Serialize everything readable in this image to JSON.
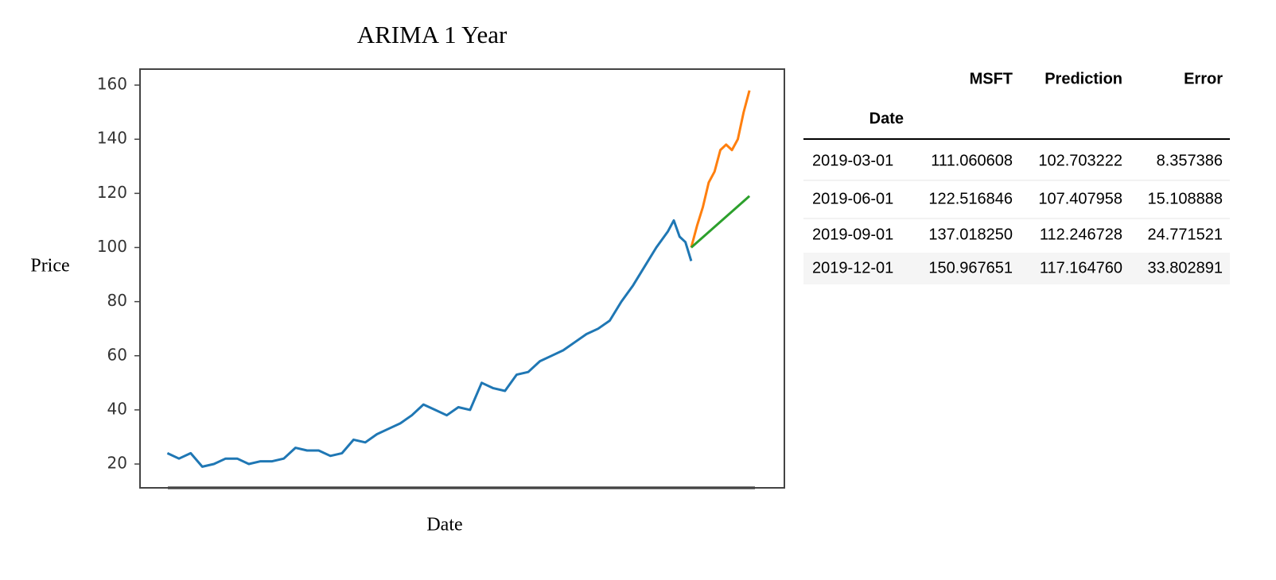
{
  "chart_data": {
    "type": "line",
    "title": "ARIMA 1 Year",
    "x_label": "Date",
    "y_label": "Price",
    "xlim": [
      -4.7,
      106
    ],
    "ylim": [
      11.2,
      165.9
    ],
    "yticks": [
      20,
      40,
      60,
      80,
      100,
      120,
      140,
      160
    ],
    "grid": false,
    "series": [
      {
        "color": "#1f77b4",
        "x": [
          0,
          2,
          4,
          6,
          8,
          10,
          12,
          14,
          16,
          18,
          20,
          22,
          24,
          26,
          28,
          30,
          32,
          34,
          36,
          38,
          40,
          42,
          44,
          46,
          48,
          50,
          52,
          54,
          56,
          58,
          60,
          62,
          64,
          66,
          68,
          70,
          72,
          74,
          76,
          78,
          80,
          82,
          84,
          86,
          87,
          88,
          89,
          90
        ],
        "values": [
          24,
          22,
          24,
          19,
          20,
          22,
          22,
          20,
          21,
          21,
          22,
          26,
          25,
          25,
          23,
          24,
          29,
          28,
          31,
          33,
          35,
          38,
          42,
          40,
          38,
          41,
          40,
          50,
          48,
          47,
          53,
          54,
          58,
          60,
          62,
          65,
          68,
          70,
          73,
          80,
          86,
          93,
          100,
          106,
          110,
          104,
          102,
          95
        ]
      },
      {
        "color": "#ff7f0e",
        "x": [
          90,
          91,
          92,
          93,
          94,
          95,
          96,
          97,
          98,
          99,
          100
        ],
        "values": [
          100,
          108,
          115,
          124,
          128,
          136,
          138,
          136,
          140,
          150,
          158
        ]
      },
      {
        "color": "#2ca02c",
        "x": [
          90,
          100
        ],
        "values": [
          100,
          119
        ]
      }
    ]
  },
  "table": {
    "columns": [
      "MSFT",
      "Prediction",
      "Error"
    ],
    "index_name": "Date",
    "rows": [
      [
        "2019-03-01",
        "111.060608",
        "102.703222",
        "8.357386"
      ],
      [
        "2019-06-01",
        "122.516846",
        "107.407958",
        "15.108888"
      ],
      [
        "2019-09-01",
        "137.018250",
        "112.246728",
        "24.771521"
      ],
      [
        "2019-12-01",
        "150.967651",
        "117.164760",
        "33.802891"
      ]
    ]
  }
}
